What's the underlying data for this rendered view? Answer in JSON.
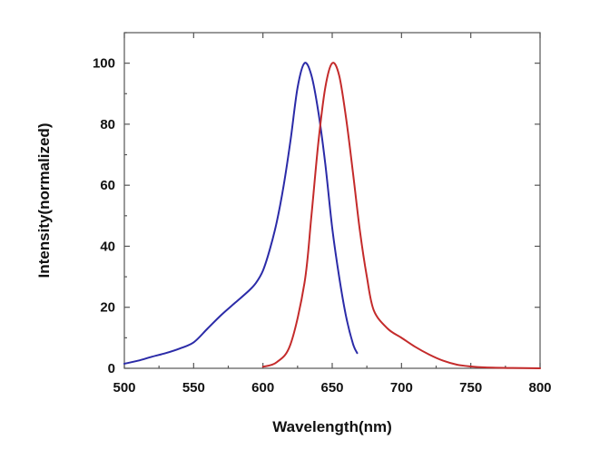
{
  "chart_data": {
    "type": "line",
    "title": "",
    "xlabel": "Wavelength(nm)",
    "ylabel": "Intensity(normalized)",
    "xlim": [
      500,
      800
    ],
    "ylim": [
      0,
      110
    ],
    "x_ticks": [
      500,
      550,
      600,
      650,
      700,
      750,
      800
    ],
    "y_ticks": [
      0,
      20,
      40,
      60,
      80,
      100
    ],
    "grid": false,
    "legend": "none",
    "series": [
      {
        "color": "#2b2ba8",
        "points": [
          [
            500,
            1.5
          ],
          [
            510,
            2.5
          ],
          [
            520,
            3.8
          ],
          [
            530,
            5
          ],
          [
            540,
            6.5
          ],
          [
            550,
            8.5
          ],
          [
            560,
            13
          ],
          [
            570,
            17.5
          ],
          [
            580,
            21.5
          ],
          [
            590,
            25.5
          ],
          [
            595,
            28
          ],
          [
            600,
            32
          ],
          [
            605,
            39
          ],
          [
            610,
            48
          ],
          [
            615,
            60
          ],
          [
            620,
            75
          ],
          [
            625,
            92
          ],
          [
            630,
            100
          ],
          [
            635,
            96
          ],
          [
            640,
            84
          ],
          [
            645,
            67
          ],
          [
            650,
            46
          ],
          [
            655,
            30
          ],
          [
            660,
            17
          ],
          [
            665,
            8
          ],
          [
            668,
            5
          ]
        ]
      },
      {
        "color": "#c42b2b",
        "points": [
          [
            600,
            0.5
          ],
          [
            610,
            2
          ],
          [
            620,
            8
          ],
          [
            630,
            28
          ],
          [
            635,
            50
          ],
          [
            640,
            74
          ],
          [
            645,
            92
          ],
          [
            650,
            100
          ],
          [
            655,
            96
          ],
          [
            660,
            82
          ],
          [
            665,
            64
          ],
          [
            670,
            45
          ],
          [
            675,
            30
          ],
          [
            680,
            19
          ],
          [
            690,
            13
          ],
          [
            700,
            10
          ],
          [
            710,
            7
          ],
          [
            720,
            4.5
          ],
          [
            730,
            2.5
          ],
          [
            740,
            1.2
          ],
          [
            750,
            0.6
          ],
          [
            760,
            0.3
          ],
          [
            780,
            0.1
          ],
          [
            800,
            0
          ]
        ]
      }
    ]
  }
}
